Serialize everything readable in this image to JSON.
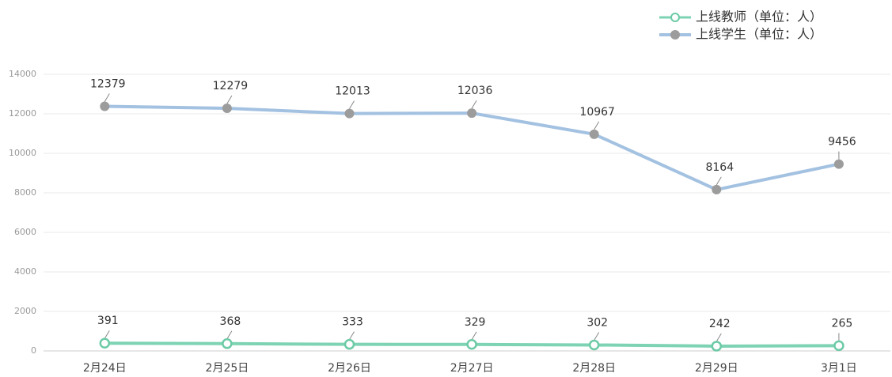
{
  "chart_data": {
    "type": "line",
    "categories": [
      "2月24日",
      "2月25日",
      "2月26日",
      "2月27日",
      "2月28日",
      "2月29日",
      "3月1日"
    ],
    "series": [
      {
        "name": "上线教师（单位：人）",
        "color": "#7dd3b3",
        "marker_color": "#6ccaa6",
        "marker": "hollow",
        "values": [
          391,
          368,
          333,
          329,
          302,
          242,
          265
        ]
      },
      {
        "name": "上线学生（单位：人）",
        "color": "#a3c1e1",
        "marker_color": "#9c9c9c",
        "marker": "filled",
        "values": [
          12379,
          12279,
          12013,
          12036,
          10967,
          8164,
          9456
        ]
      }
    ],
    "ylim": [
      0,
      14000
    ],
    "yticks": [
      0,
      2000,
      4000,
      6000,
      8000,
      10000,
      12000,
      14000
    ],
    "grid": true
  }
}
